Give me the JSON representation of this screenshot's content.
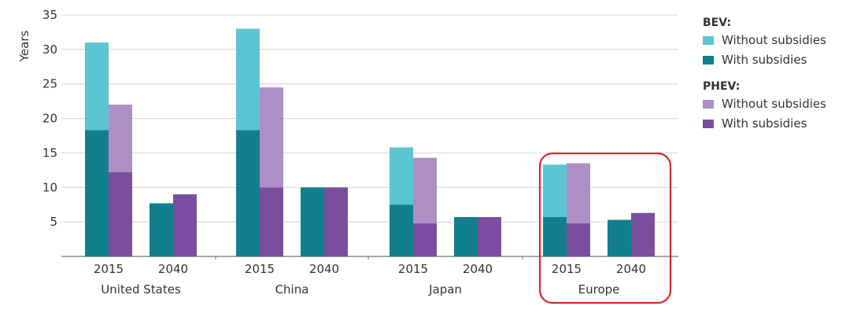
{
  "chart_data": {
    "type": "bar",
    "subtype": "stacked-grouped",
    "ylabel": "Years",
    "ylim": [
      0,
      35
    ],
    "yticks": [
      5,
      10,
      15,
      20,
      25,
      30,
      35
    ],
    "grid": true,
    "legend_position": "right",
    "regions": [
      "United States",
      "China",
      "Japan",
      "Europe"
    ],
    "years": [
      "2015",
      "2040"
    ],
    "legend": {
      "groups": [
        {
          "title": "BEV:",
          "items": [
            {
              "label": "Without subsidies",
              "color": "#5bc5d3"
            },
            {
              "label": "With subsidies",
              "color": "#127f8e"
            }
          ]
        },
        {
          "title": "PHEV:",
          "items": [
            {
              "label": "Without subsidies",
              "color": "#ad8fc5"
            },
            {
              "label": "With subsidies",
              "color": "#7a4e9e"
            }
          ]
        }
      ]
    },
    "series": [
      {
        "name": "BEV With subsidies",
        "type": "BEV",
        "part": "with",
        "values": [
          [
            18.3,
            7.7
          ],
          [
            18.3,
            10.0
          ],
          [
            7.5,
            5.7
          ],
          [
            5.7,
            5.3
          ]
        ]
      },
      {
        "name": "BEV Without subsidies",
        "type": "BEV",
        "part": "without",
        "values": [
          [
            31.0,
            null
          ],
          [
            33.0,
            null
          ],
          [
            15.8,
            null
          ],
          [
            13.3,
            null
          ]
        ]
      },
      {
        "name": "PHEV With subsidies",
        "type": "PHEV",
        "part": "with",
        "values": [
          [
            12.2,
            9.0
          ],
          [
            10.0,
            10.0
          ],
          [
            4.8,
            5.7
          ],
          [
            4.8,
            6.3
          ]
        ]
      },
      {
        "name": "PHEV Without subsidies",
        "type": "PHEV",
        "part": "without",
        "values": [
          [
            22.0,
            null
          ],
          [
            24.5,
            null
          ],
          [
            14.3,
            null
          ],
          [
            13.5,
            null
          ]
        ]
      }
    ],
    "highlight": {
      "region": "Europe",
      "color": "#d9282f"
    }
  }
}
